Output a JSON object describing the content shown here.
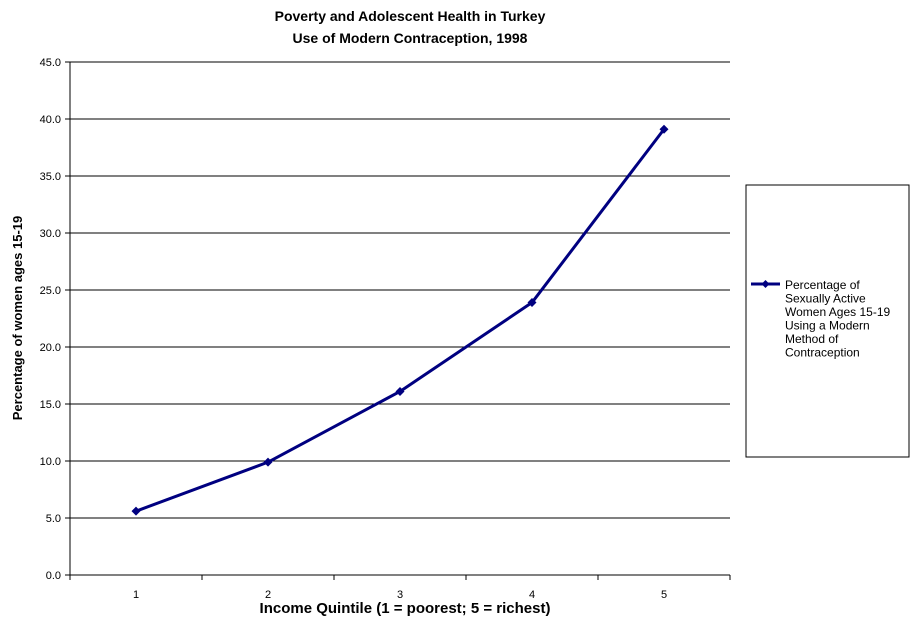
{
  "chart_data": {
    "type": "line",
    "title": [
      "Poverty and Adolescent Health in Turkey",
      "Use of Modern Contraception, 1998"
    ],
    "xlabel": "Income Quintile (1 = poorest; 5 = richest)",
    "ylabel": "Percentage of women ages 15-19",
    "categories": [
      "1",
      "2",
      "3",
      "4",
      "5"
    ],
    "y_ticks": [
      "0.0",
      "5.0",
      "10.0",
      "15.0",
      "20.0",
      "25.0",
      "30.0",
      "35.0",
      "40.0",
      "45.0"
    ],
    "ylim": [
      0,
      45
    ],
    "grid": "horizontal",
    "legend_position": "right",
    "series": [
      {
        "name": [
          "Percentage of",
          "Sexually Active",
          "Women Ages 15-19",
          "Using a Modern",
          "Method of",
          "Contraception"
        ],
        "values": [
          5.6,
          9.9,
          16.1,
          23.9,
          39.1
        ],
        "color": "#000080",
        "marker": "diamond"
      }
    ]
  }
}
